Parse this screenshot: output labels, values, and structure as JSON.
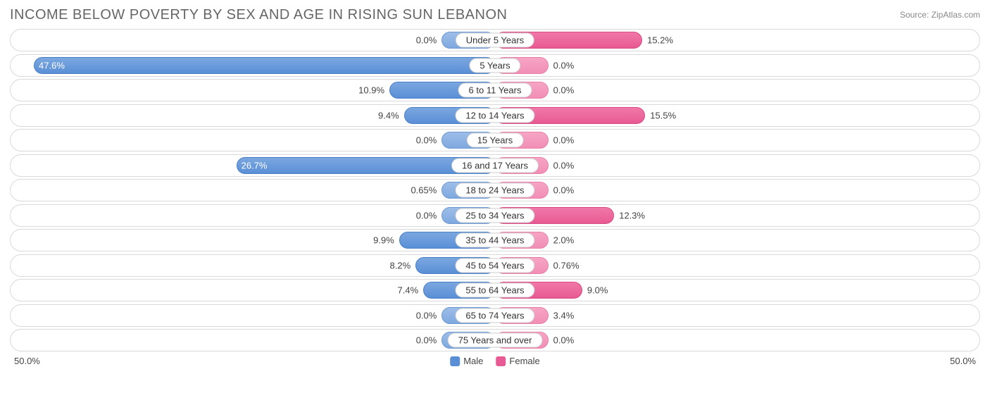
{
  "title": "INCOME BELOW POVERTY BY SEX AND AGE IN RISING SUN LEBANON",
  "source": "Source: ZipAtlas.com",
  "chart": {
    "type": "diverging-bar",
    "axis_max": 50.0,
    "axis_left_label": "50.0%",
    "axis_right_label": "50.0%",
    "min_bar_pct_visual": 11.0,
    "colors": {
      "male_bar": "#5a8fd6",
      "male_min_bar": "#8fb3e3",
      "female_bar": "#e85a93",
      "female_min_bar": "#f39abc",
      "row_border": "#d9d9d9",
      "text": "#444444",
      "title_text": "#666666",
      "background": "#ffffff"
    },
    "legend": {
      "male": "Male",
      "female": "Female"
    },
    "rows": [
      {
        "category": "Under 5 Years",
        "male": 0.0,
        "male_label": "0.0%",
        "female": 15.2,
        "female_label": "15.2%"
      },
      {
        "category": "5 Years",
        "male": 47.6,
        "male_label": "47.6%",
        "female": 0.0,
        "female_label": "0.0%"
      },
      {
        "category": "6 to 11 Years",
        "male": 10.9,
        "male_label": "10.9%",
        "female": 0.0,
        "female_label": "0.0%"
      },
      {
        "category": "12 to 14 Years",
        "male": 9.4,
        "male_label": "9.4%",
        "female": 15.5,
        "female_label": "15.5%"
      },
      {
        "category": "15 Years",
        "male": 0.0,
        "male_label": "0.0%",
        "female": 0.0,
        "female_label": "0.0%"
      },
      {
        "category": "16 and 17 Years",
        "male": 26.7,
        "male_label": "26.7%",
        "female": 0.0,
        "female_label": "0.0%"
      },
      {
        "category": "18 to 24 Years",
        "male": 0.65,
        "male_label": "0.65%",
        "female": 0.0,
        "female_label": "0.0%"
      },
      {
        "category": "25 to 34 Years",
        "male": 0.0,
        "male_label": "0.0%",
        "female": 12.3,
        "female_label": "12.3%"
      },
      {
        "category": "35 to 44 Years",
        "male": 9.9,
        "male_label": "9.9%",
        "female": 2.0,
        "female_label": "2.0%"
      },
      {
        "category": "45 to 54 Years",
        "male": 8.2,
        "male_label": "8.2%",
        "female": 0.76,
        "female_label": "0.76%"
      },
      {
        "category": "55 to 64 Years",
        "male": 7.4,
        "male_label": "7.4%",
        "female": 9.0,
        "female_label": "9.0%"
      },
      {
        "category": "65 to 74 Years",
        "male": 0.0,
        "male_label": "0.0%",
        "female": 3.4,
        "female_label": "3.4%"
      },
      {
        "category": "75 Years and over",
        "male": 0.0,
        "male_label": "0.0%",
        "female": 0.0,
        "female_label": "0.0%"
      }
    ]
  }
}
